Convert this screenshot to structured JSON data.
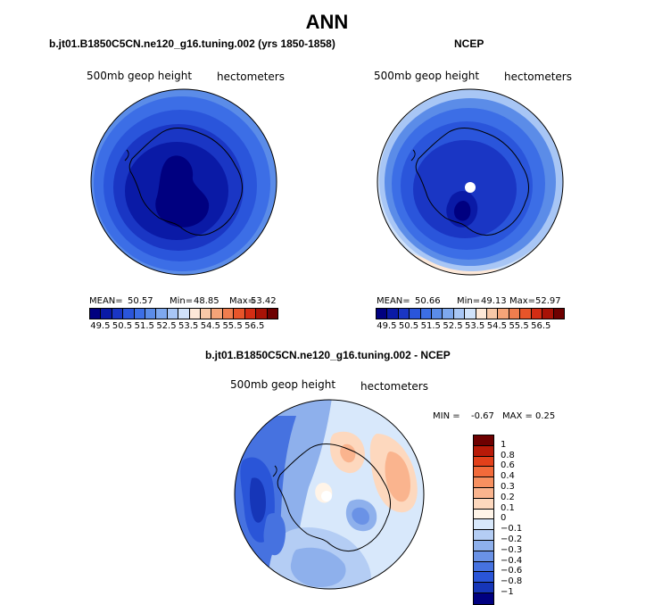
{
  "title": "ANN",
  "panels": {
    "left": {
      "header": "b.jt01.B1850C5CN.ne120_g16.tuning.002 (yrs 1850-1858)",
      "variable": "500mb geop height",
      "units": "hectometers",
      "mean_label": "MEAN=",
      "mean": "50.57",
      "min_label": "Min=",
      "min": "48.85",
      "max_label": "Max=",
      "max": "53.42"
    },
    "right": {
      "header": "NCEP",
      "variable": "500mb geop height",
      "units": "hectometers",
      "mean_label": "MEAN=",
      "mean": "50.66",
      "min_label": "Min=",
      "min": "49.13",
      "max_label": "Max=",
      "max": "52.97"
    },
    "diff": {
      "header": "b.jt01.B1850C5CN.ne120_g16.tuning.002 - NCEP",
      "variable": "500mb geop height",
      "units": "hectometers",
      "min_label": "MIN =",
      "min": "-0.67",
      "max_label": "MAX =",
      "max": "0.25"
    }
  },
  "colorbar_top": {
    "colors": [
      "#000080",
      "#0a1aa6",
      "#1a36c4",
      "#2a55db",
      "#3c6ee6",
      "#5b8ce8",
      "#7ea8ee",
      "#a8c6f5",
      "#d0e2fa",
      "#fde8d8",
      "#f8c8a8",
      "#f5a478",
      "#f07d4e",
      "#e8552a",
      "#d42d14",
      "#a81206",
      "#6e0000"
    ],
    "ticks": [
      "49.5",
      "50.5",
      "51.5",
      "52.5",
      "53.5",
      "54.5",
      "55.5",
      "56.5"
    ]
  },
  "colorbar_diff": {
    "colors": [
      "#6e0000",
      "#b81a08",
      "#e2401a",
      "#f26a3a",
      "#f79060",
      "#fab48e",
      "#fdd8be",
      "#fff4e8",
      "#d8e8fb",
      "#b4cdf4",
      "#8eb0ec",
      "#6a92e6",
      "#4672e0",
      "#2a55d8",
      "#1636b8",
      "#000080"
    ],
    "ticks": [
      "1",
      "0.8",
      "0.6",
      "0.4",
      "0.3",
      "0.2",
      "0.1",
      "0",
      "−0.1",
      "−0.2",
      "−0.3",
      "−0.4",
      "−0.6",
      "−0.8",
      "−1"
    ]
  }
}
